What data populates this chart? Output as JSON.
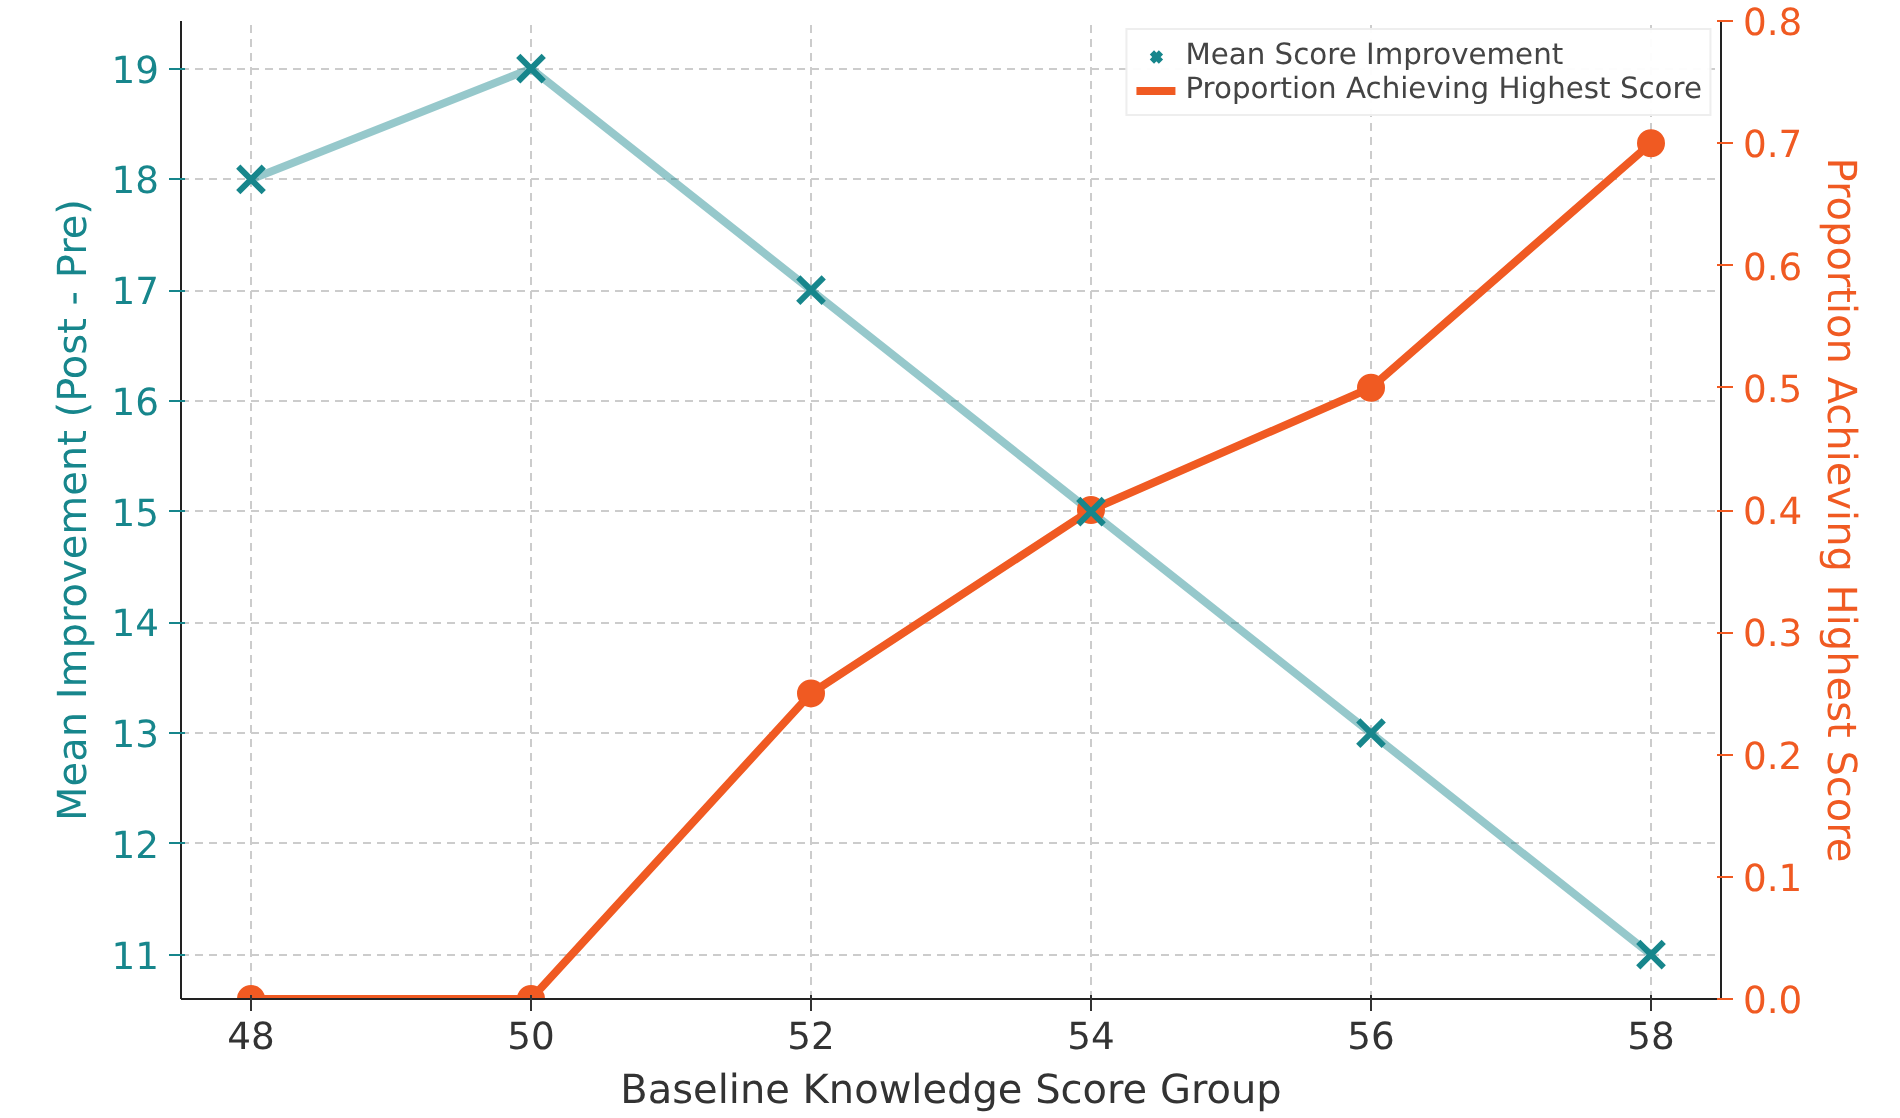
{
  "chart_data": {
    "type": "line",
    "xlabel": "Baseline Knowledge Score Group",
    "ylabel": "Mean Improvement (Post - Pre)",
    "y2label": "Proportion Achieving Highest Score",
    "x": [
      48,
      50,
      52,
      54,
      56,
      58
    ],
    "series": [
      {
        "name": "Mean Score Improvement",
        "color": "#17868c",
        "values": [
          18,
          19,
          17,
          15,
          13,
          11
        ],
        "marker": "cross"
      },
      {
        "name": "Proportion Achieving Highest Score",
        "color": "#f05a22",
        "values": [
          0,
          0,
          0.25,
          0.4,
          0.5,
          0.7
        ],
        "marker": "circle",
        "axis": "y2"
      }
    ],
    "xlim": [
      47.5,
      58.5
    ],
    "xticks": [
      48,
      50,
      52,
      54,
      56,
      58
    ],
    "ylim": [
      10.6,
      19.43
    ],
    "yticks": [
      11,
      12,
      13,
      14,
      15,
      16,
      17,
      18,
      19
    ],
    "y2lim": [
      0,
      0.8
    ],
    "y2ticks": [
      {
        "value": 0,
        "label": "0.0"
      },
      {
        "value": 0.1,
        "label": "0.1"
      },
      {
        "value": 0.2,
        "label": "0.2"
      },
      {
        "value": 0.3,
        "label": "0.3"
      },
      {
        "value": 0.4,
        "label": "0.4"
      },
      {
        "value": 0.5,
        "label": "0.5"
      },
      {
        "value": 0.6,
        "label": "0.6"
      },
      {
        "value": 0.7,
        "label": "0.7"
      },
      {
        "value": 0.8,
        "label": "0.8"
      }
    ],
    "grid": true,
    "legend": "top right",
    "line_style": "solid"
  }
}
